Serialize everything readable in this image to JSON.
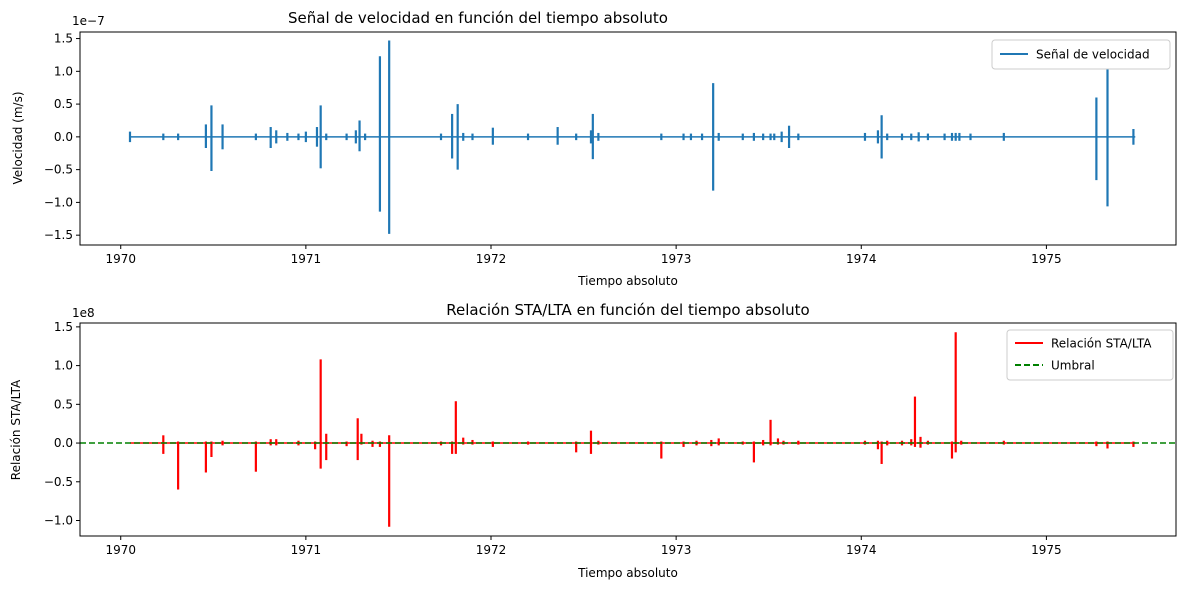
{
  "chart_data": [
    {
      "type": "line",
      "title": "Señal de velocidad en función del tiempo absoluto",
      "xlabel": "Tiempo absoluto",
      "ylabel": "Velocidad (m/s)",
      "y_offset_label": "1e−7",
      "xlim": [
        1969.78,
        1975.7
      ],
      "ylim": [
        -1.65,
        1.6
      ],
      "xticks": [
        1970,
        1971,
        1972,
        1973,
        1974,
        1975
      ],
      "xticklabels": [
        "1970",
        "1971",
        "1972",
        "1973",
        "1974",
        "1975"
      ],
      "yticks": [
        -1.5,
        -1.0,
        -0.5,
        0.0,
        0.5,
        1.0,
        1.5
      ],
      "yticklabels": [
        "−1.5",
        "−1.0",
        "−0.5",
        "0.0",
        "0.5",
        "1.0",
        "1.5"
      ],
      "legend": {
        "position": "top-right",
        "entries": [
          "Señal de velocidad"
        ]
      },
      "grid": false,
      "series": [
        {
          "name": "Señal de velocidad",
          "color": "#1f77b4",
          "baseline": [
            1970.05,
            1975.48
          ],
          "bursts": [
            {
              "x": 1970.05,
              "hi": 0.08,
              "lo": -0.08
            },
            {
              "x": 1970.23,
              "hi": 0.05,
              "lo": -0.05
            },
            {
              "x": 1970.31,
              "hi": 0.05,
              "lo": -0.05
            },
            {
              "x": 1970.46,
              "hi": 0.19,
              "lo": -0.17
            },
            {
              "x": 1970.49,
              "hi": 0.48,
              "lo": -0.52
            },
            {
              "x": 1970.55,
              "hi": 0.19,
              "lo": -0.19
            },
            {
              "x": 1970.73,
              "hi": 0.05,
              "lo": -0.05
            },
            {
              "x": 1970.81,
              "hi": 0.15,
              "lo": -0.17
            },
            {
              "x": 1970.84,
              "hi": 0.1,
              "lo": -0.1
            },
            {
              "x": 1970.9,
              "hi": 0.06,
              "lo": -0.06
            },
            {
              "x": 1970.96,
              "hi": 0.05,
              "lo": -0.05
            },
            {
              "x": 1971.0,
              "hi": 0.08,
              "lo": -0.08
            },
            {
              "x": 1971.06,
              "hi": 0.15,
              "lo": -0.15
            },
            {
              "x": 1971.08,
              "hi": 0.48,
              "lo": -0.48
            },
            {
              "x": 1971.11,
              "hi": 0.05,
              "lo": -0.05
            },
            {
              "x": 1971.22,
              "hi": 0.05,
              "lo": -0.05
            },
            {
              "x": 1971.27,
              "hi": 0.1,
              "lo": -0.1
            },
            {
              "x": 1971.29,
              "hi": 0.25,
              "lo": -0.22
            },
            {
              "x": 1971.32,
              "hi": 0.05,
              "lo": -0.05
            },
            {
              "x": 1971.4,
              "hi": 1.23,
              "lo": -1.14
            },
            {
              "x": 1971.45,
              "hi": 1.47,
              "lo": -1.48
            },
            {
              "x": 1971.73,
              "hi": 0.05,
              "lo": -0.05
            },
            {
              "x": 1971.79,
              "hi": 0.35,
              "lo": -0.33
            },
            {
              "x": 1971.82,
              "hi": 0.5,
              "lo": -0.5
            },
            {
              "x": 1971.85,
              "hi": 0.06,
              "lo": -0.06
            },
            {
              "x": 1971.9,
              "hi": 0.05,
              "lo": -0.05
            },
            {
              "x": 1972.01,
              "hi": 0.14,
              "lo": -0.12
            },
            {
              "x": 1972.2,
              "hi": 0.05,
              "lo": -0.05
            },
            {
              "x": 1972.36,
              "hi": 0.15,
              "lo": -0.12
            },
            {
              "x": 1972.46,
              "hi": 0.05,
              "lo": -0.05
            },
            {
              "x": 1972.54,
              "hi": 0.1,
              "lo": -0.1
            },
            {
              "x": 1972.55,
              "hi": 0.35,
              "lo": -0.34
            },
            {
              "x": 1972.58,
              "hi": 0.06,
              "lo": -0.06
            },
            {
              "x": 1972.92,
              "hi": 0.05,
              "lo": -0.05
            },
            {
              "x": 1973.04,
              "hi": 0.05,
              "lo": -0.05
            },
            {
              "x": 1973.08,
              "hi": 0.05,
              "lo": -0.05
            },
            {
              "x": 1973.14,
              "hi": 0.05,
              "lo": -0.05
            },
            {
              "x": 1973.2,
              "hi": 0.82,
              "lo": -0.82
            },
            {
              "x": 1973.23,
              "hi": 0.06,
              "lo": -0.06
            },
            {
              "x": 1973.36,
              "hi": 0.05,
              "lo": -0.05
            },
            {
              "x": 1973.42,
              "hi": 0.06,
              "lo": -0.06
            },
            {
              "x": 1973.47,
              "hi": 0.05,
              "lo": -0.05
            },
            {
              "x": 1973.51,
              "hi": 0.05,
              "lo": -0.05
            },
            {
              "x": 1973.53,
              "hi": 0.05,
              "lo": -0.05
            },
            {
              "x": 1973.57,
              "hi": 0.08,
              "lo": -0.08
            },
            {
              "x": 1973.61,
              "hi": 0.17,
              "lo": -0.17
            },
            {
              "x": 1973.66,
              "hi": 0.05,
              "lo": -0.05
            },
            {
              "x": 1974.02,
              "hi": 0.06,
              "lo": -0.06
            },
            {
              "x": 1974.09,
              "hi": 0.1,
              "lo": -0.1
            },
            {
              "x": 1974.11,
              "hi": 0.33,
              "lo": -0.33
            },
            {
              "x": 1974.14,
              "hi": 0.05,
              "lo": -0.05
            },
            {
              "x": 1974.22,
              "hi": 0.05,
              "lo": -0.05
            },
            {
              "x": 1974.27,
              "hi": 0.05,
              "lo": -0.05
            },
            {
              "x": 1974.31,
              "hi": 0.07,
              "lo": -0.07
            },
            {
              "x": 1974.36,
              "hi": 0.05,
              "lo": -0.05
            },
            {
              "x": 1974.45,
              "hi": 0.05,
              "lo": -0.05
            },
            {
              "x": 1974.49,
              "hi": 0.06,
              "lo": -0.06
            },
            {
              "x": 1974.51,
              "hi": 0.06,
              "lo": -0.06
            },
            {
              "x": 1974.53,
              "hi": 0.06,
              "lo": -0.06
            },
            {
              "x": 1974.59,
              "hi": 0.05,
              "lo": -0.05
            },
            {
              "x": 1974.77,
              "hi": 0.06,
              "lo": -0.06
            },
            {
              "x": 1975.27,
              "hi": 0.6,
              "lo": -0.66
            },
            {
              "x": 1975.33,
              "hi": 1.1,
              "lo": -1.06
            },
            {
              "x": 1975.47,
              "hi": 0.12,
              "lo": -0.12
            }
          ]
        }
      ]
    },
    {
      "type": "line",
      "title": "Relación STA/LTA en función del tiempo absoluto",
      "xlabel": "Tiempo absoluto",
      "ylabel": "Relación STA/LTA",
      "y_offset_label": "1e8",
      "xlim": [
        1969.78,
        1975.7
      ],
      "ylim": [
        -1.2,
        1.55
      ],
      "xticks": [
        1970,
        1971,
        1972,
        1973,
        1974,
        1975
      ],
      "xticklabels": [
        "1970",
        "1971",
        "1972",
        "1973",
        "1974",
        "1975"
      ],
      "yticks": [
        -1.0,
        -0.5,
        0.0,
        0.5,
        1.0,
        1.5
      ],
      "yticklabels": [
        "−1.0",
        "−0.5",
        "0.0",
        "0.5",
        "1.0",
        "1.5"
      ],
      "legend": {
        "position": "top-right",
        "entries": [
          "Relación STA/LTA",
          "Umbral"
        ]
      },
      "grid": false,
      "threshold": {
        "name": "Umbral",
        "value": 0.0,
        "color": "#008000",
        "style": "dashed"
      },
      "series": [
        {
          "name": "Relación STA/LTA",
          "color": "#ff0000",
          "baseline": [
            1970.05,
            1975.48
          ],
          "bursts": [
            {
              "x": 1970.23,
              "hi": 0.1,
              "lo": -0.14
            },
            {
              "x": 1970.31,
              "hi": 0.02,
              "lo": -0.6
            },
            {
              "x": 1970.46,
              "hi": 0.02,
              "lo": -0.38
            },
            {
              "x": 1970.49,
              "hi": 0.02,
              "lo": -0.18
            },
            {
              "x": 1970.55,
              "hi": 0.03,
              "lo": -0.03
            },
            {
              "x": 1970.73,
              "hi": 0.02,
              "lo": -0.37
            },
            {
              "x": 1970.81,
              "hi": 0.05,
              "lo": -0.03
            },
            {
              "x": 1970.84,
              "hi": 0.05,
              "lo": -0.03
            },
            {
              "x": 1970.96,
              "hi": 0.03,
              "lo": -0.03
            },
            {
              "x": 1971.05,
              "hi": 0.02,
              "lo": -0.08
            },
            {
              "x": 1971.08,
              "hi": 1.08,
              "lo": -0.33
            },
            {
              "x": 1971.11,
              "hi": 0.12,
              "lo": -0.22
            },
            {
              "x": 1971.22,
              "hi": 0.02,
              "lo": -0.04
            },
            {
              "x": 1971.28,
              "hi": 0.32,
              "lo": -0.22
            },
            {
              "x": 1971.3,
              "hi": 0.12,
              "lo": -0.02
            },
            {
              "x": 1971.36,
              "hi": 0.03,
              "lo": -0.05
            },
            {
              "x": 1971.4,
              "hi": 0.02,
              "lo": -0.05
            },
            {
              "x": 1971.45,
              "hi": 0.1,
              "lo": -1.08
            },
            {
              "x": 1971.73,
              "hi": 0.02,
              "lo": -0.03
            },
            {
              "x": 1971.79,
              "hi": 0.02,
              "lo": -0.14
            },
            {
              "x": 1971.81,
              "hi": 0.54,
              "lo": -0.14
            },
            {
              "x": 1971.85,
              "hi": 0.07,
              "lo": -0.02
            },
            {
              "x": 1971.9,
              "hi": 0.04,
              "lo": -0.02
            },
            {
              "x": 1972.01,
              "hi": 0.02,
              "lo": -0.05
            },
            {
              "x": 1972.2,
              "hi": 0.02,
              "lo": -0.02
            },
            {
              "x": 1972.46,
              "hi": 0.02,
              "lo": -0.12
            },
            {
              "x": 1972.54,
              "hi": 0.16,
              "lo": -0.14
            },
            {
              "x": 1972.58,
              "hi": 0.03,
              "lo": -0.02
            },
            {
              "x": 1972.92,
              "hi": 0.02,
              "lo": -0.2
            },
            {
              "x": 1973.04,
              "hi": 0.02,
              "lo": -0.05
            },
            {
              "x": 1973.11,
              "hi": 0.03,
              "lo": -0.03
            },
            {
              "x": 1973.19,
              "hi": 0.04,
              "lo": -0.04
            },
            {
              "x": 1973.23,
              "hi": 0.06,
              "lo": -0.03
            },
            {
              "x": 1973.36,
              "hi": 0.02,
              "lo": -0.02
            },
            {
              "x": 1973.42,
              "hi": 0.02,
              "lo": -0.25
            },
            {
              "x": 1973.47,
              "hi": 0.04,
              "lo": -0.03
            },
            {
              "x": 1973.51,
              "hi": 0.3,
              "lo": -0.03
            },
            {
              "x": 1973.55,
              "hi": 0.06,
              "lo": -0.02
            },
            {
              "x": 1973.58,
              "hi": 0.03,
              "lo": -0.02
            },
            {
              "x": 1973.66,
              "hi": 0.03,
              "lo": -0.02
            },
            {
              "x": 1974.02,
              "hi": 0.03,
              "lo": -0.02
            },
            {
              "x": 1974.09,
              "hi": 0.03,
              "lo": -0.08
            },
            {
              "x": 1974.11,
              "hi": 0.02,
              "lo": -0.27
            },
            {
              "x": 1974.14,
              "hi": 0.03,
              "lo": -0.03
            },
            {
              "x": 1974.22,
              "hi": 0.03,
              "lo": -0.03
            },
            {
              "x": 1974.27,
              "hi": 0.05,
              "lo": -0.03
            },
            {
              "x": 1974.29,
              "hi": 0.6,
              "lo": -0.05
            },
            {
              "x": 1974.32,
              "hi": 0.08,
              "lo": -0.06
            },
            {
              "x": 1974.36,
              "hi": 0.03,
              "lo": -0.02
            },
            {
              "x": 1974.49,
              "hi": 0.02,
              "lo": -0.2
            },
            {
              "x": 1974.51,
              "hi": 1.43,
              "lo": -0.12
            },
            {
              "x": 1974.54,
              "hi": 0.03,
              "lo": -0.02
            },
            {
              "x": 1974.77,
              "hi": 0.03,
              "lo": -0.02
            },
            {
              "x": 1975.27,
              "hi": 0.02,
              "lo": -0.04
            },
            {
              "x": 1975.33,
              "hi": 0.02,
              "lo": -0.07
            },
            {
              "x": 1975.47,
              "hi": 0.02,
              "lo": -0.05
            }
          ]
        }
      ]
    }
  ]
}
